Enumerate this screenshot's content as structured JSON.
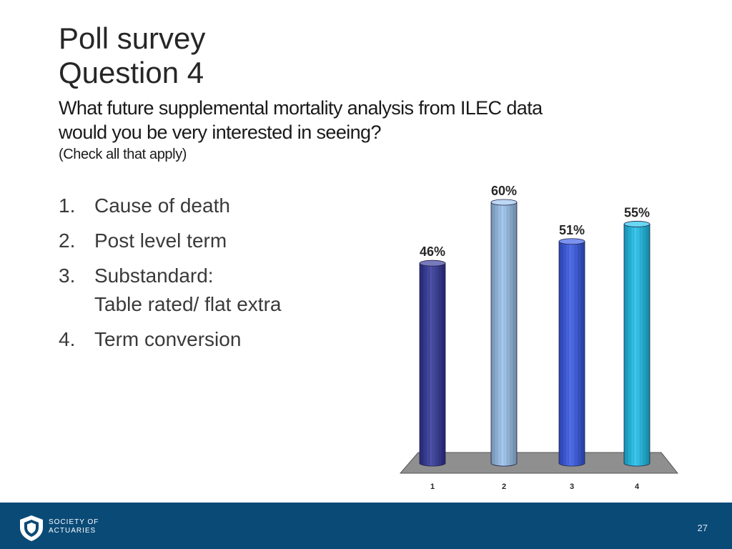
{
  "slide": {
    "title_line1": "Poll survey",
    "title_line2": "Question 4",
    "question_line1": "What future supplemental mortality analysis from ILEC data",
    "question_line2": "would you be very interested in seeing?",
    "note": "(Check all that apply)",
    "options": [
      {
        "number": "1.",
        "text": "Cause of death"
      },
      {
        "number": "2.",
        "text": "Post level term"
      },
      {
        "number": "3.",
        "text": "Substandard:\nTable rated/ flat extra"
      },
      {
        "number": "4.",
        "text": "Term conversion"
      }
    ]
  },
  "chart_data": {
    "type": "bar",
    "categories": [
      "1",
      "2",
      "3",
      "4"
    ],
    "values": [
      46,
      60,
      51,
      55
    ],
    "data_labels": [
      "46%",
      "60%",
      "51%",
      "55%"
    ],
    "ylim": [
      0,
      60
    ],
    "grid": false,
    "legend": "none",
    "colors": [
      "#2f3399",
      "#99c2ee",
      "#3457e8",
      "#19c1ec"
    ],
    "title": "",
    "xlabel": "",
    "ylabel": ""
  },
  "footer": {
    "logo_line1": "SOCIETY OF",
    "logo_line2": "ACTUARIES",
    "page_number": "27",
    "background": "#0a4a77"
  }
}
